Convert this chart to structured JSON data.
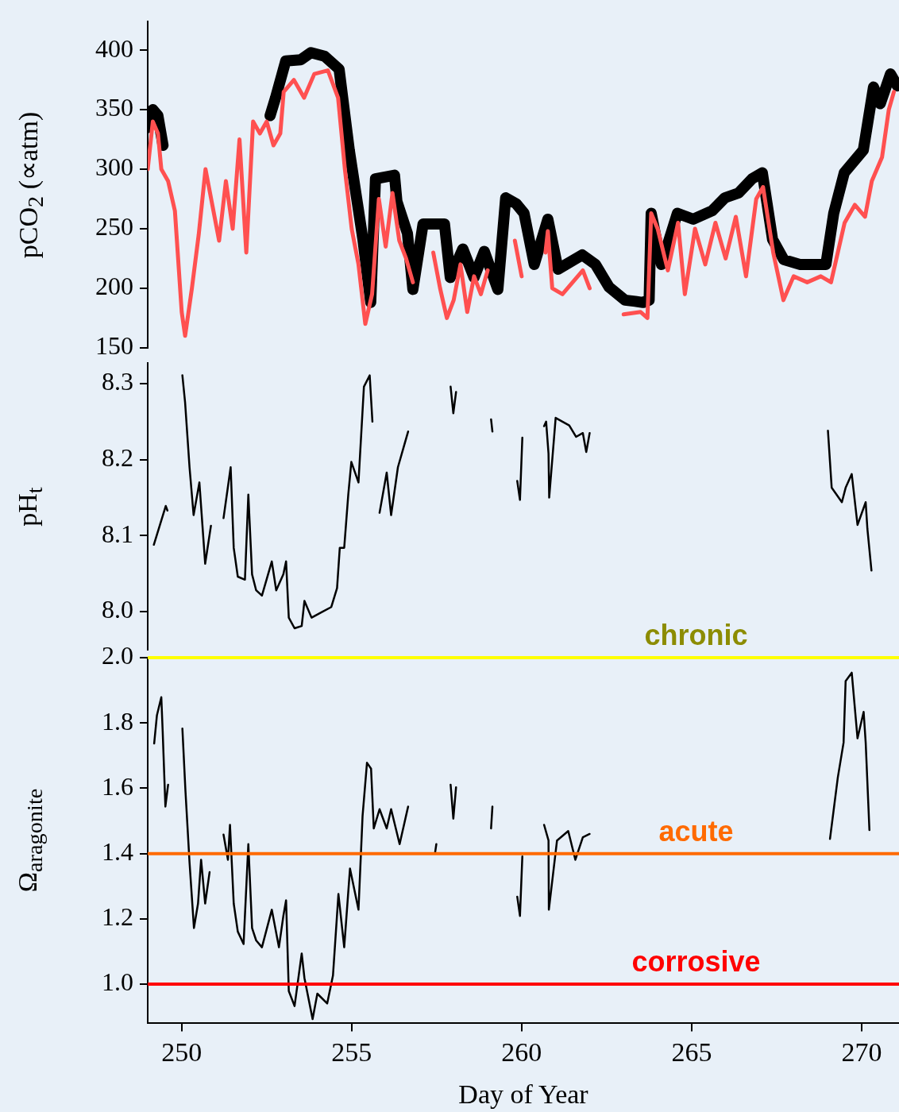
{
  "chart_data": [
    {
      "type": "line",
      "ylabel": "pCO$_{2}$ (∝atm)",
      "xlim": [
        249,
        271.1
      ],
      "xticks": [
        250,
        255,
        260,
        265,
        270
      ],
      "ylim": [
        150,
        424
      ],
      "yticks": [
        150,
        200,
        250,
        300,
        350,
        400
      ],
      "tick_labels": "y",
      "series": [
        {
          "color": "#000000",
          "x": [
            249.0,
            249.15,
            249.3,
            249.45,
            249.6,
            252.6,
            252.76,
            253.06,
            253.5,
            253.8,
            254.2,
            254.63,
            254.93,
            255.16,
            255.33,
            255.56,
            255.7,
            256.26,
            256.33,
            256.64,
            256.8,
            257.1,
            257.73,
            257.9,
            258.27,
            258.6,
            258.9,
            259.3,
            259.53,
            259.84,
            260.07,
            260.37,
            260.77,
            261.07,
            261.78,
            262.17,
            262.57,
            263.04,
            263.34,
            263.57,
            263.75,
            263.81,
            264.11,
            264.58,
            265.05,
            265.6,
            265.98,
            266.38,
            266.78,
            267.08,
            267.38,
            267.71,
            268.18,
            268.55,
            268.95,
            269.18,
            269.49,
            270.05,
            270.35,
            270.55,
            270.85,
            271.05
          ],
          "values": [
            335,
            350,
            345,
            320,
            null,
            345,
            360,
            391,
            392,
            398,
            395,
            384,
            316,
            273,
            241,
            188,
            292,
            295,
            273,
            246,
            199,
            254,
            254,
            209,
            233,
            209,
            231,
            199,
            276,
            271,
            263,
            220,
            258,
            216,
            228,
            220,
            201,
            190,
            189,
            188,
            190,
            263,
            220,
            263,
            258,
            265,
            276,
            280,
            292,
            297,
            241,
            224,
            220,
            220,
            220,
            263,
            297,
            316,
            369,
            355,
            380,
            370
          ]
        },
        {
          "color": "#ff5050",
          "x": [
            249.0,
            249.15,
            249.3,
            249.4,
            249.6,
            249.8,
            250.0,
            250.1,
            250.3,
            250.5,
            250.7,
            250.9,
            251.1,
            251.3,
            251.5,
            251.7,
            251.9,
            252.1,
            252.3,
            252.5,
            252.7,
            252.9,
            253.0,
            253.3,
            253.6,
            253.9,
            254.3,
            254.6,
            254.8,
            255.0,
            255.2,
            255.4,
            255.6,
            255.8,
            256.0,
            256.2,
            256.4,
            256.6,
            256.8,
            257.0,
            257.4,
            257.6,
            257.8,
            258.0,
            258.2,
            258.4,
            258.6,
            258.8,
            259.0,
            259.2,
            259.8,
            260.0,
            260.4,
            260.7,
            260.77,
            260.9,
            261.2,
            261.5,
            261.8,
            262.0,
            262.4,
            263.0,
            263.5,
            263.7,
            263.81,
            264.0,
            264.3,
            264.6,
            264.8,
            265.1,
            265.4,
            265.7,
            266.0,
            266.3,
            266.6,
            266.9,
            267.1,
            267.4,
            267.7,
            268.0,
            268.4,
            268.8,
            269.1,
            269.3,
            269.5,
            269.8,
            270.1,
            270.3,
            270.6,
            270.8,
            270.95
          ],
          "values": [
            300,
            340,
            330,
            300,
            290,
            265,
            180,
            160,
            200,
            245,
            300,
            270,
            240,
            290,
            250,
            325,
            230,
            340,
            330,
            340,
            320,
            330,
            365,
            375,
            360,
            380,
            383,
            360,
            300,
            250,
            220,
            170,
            195,
            275,
            235,
            280,
            240,
            225,
            205,
            null,
            230,
            200,
            175,
            190,
            220,
            180,
            210,
            195,
            215,
            null,
            240,
            210,
            null,
            230,
            248,
            200,
            195,
            205,
            215,
            200,
            null,
            178,
            180,
            175,
            263,
            250,
            215,
            255,
            195,
            250,
            220,
            255,
            225,
            260,
            210,
            275,
            285,
            230,
            190,
            210,
            205,
            210,
            205,
            230,
            255,
            270,
            260,
            290,
            310,
            350,
            365
          ]
        }
      ]
    },
    {
      "type": "line",
      "ylabel": "pH$_{t}$",
      "xlim": [
        249,
        271.1
      ],
      "xticks": [
        250,
        255,
        260,
        265,
        270
      ],
      "ylim": [
        7.95,
        8.327
      ],
      "yticks": [
        {
          "value": 8,
          "label": "8.0"
        },
        {
          "value": 8.1,
          "label": "8.1"
        },
        {
          "value": 8.2,
          "label": "8.2"
        },
        {
          "value": 8.3,
          "label": "8.3"
        }
      ],
      "tick_labels": "y",
      "series": [
        {
          "color": "#000000",
          "x": [
            249.18,
            249.53,
            249.58,
            249.8,
            250.02,
            250.1,
            250.23,
            250.35,
            250.52,
            250.69,
            250.86,
            251.0,
            251.23,
            251.44,
            251.53,
            251.65,
            251.86,
            251.96,
            252.07,
            252.19,
            252.36,
            252.65,
            252.78,
            252.99,
            253.07,
            253.15,
            253.32,
            253.53,
            253.61,
            253.82,
            254.11,
            254.4,
            254.57,
            254.65,
            254.78,
            254.9,
            254.99,
            255.2,
            255.36,
            255.53,
            255.61,
            255.7,
            255.82,
            256.03,
            256.16,
            256.36,
            256.66,
            257.0,
            257.91,
            257.99,
            258.07,
            258.5,
            259.1,
            259.14,
            259.5,
            259.87,
            259.95,
            260.02,
            260.3,
            260.66,
            260.72,
            260.79,
            260.81,
            261.0,
            261.2,
            261.4,
            261.6,
            261.8,
            261.9,
            262.0,
            262.5,
            269.01,
            269.12,
            269.42,
            269.53,
            269.71,
            269.88,
            270.12,
            270.17,
            270.29
          ],
          "values": [
            8.088,
            8.139,
            8.133,
            null,
            8.311,
            8.275,
            8.19,
            8.127,
            8.17,
            8.063,
            8.113,
            null,
            8.123,
            8.19,
            8.084,
            8.046,
            8.042,
            8.154,
            8.049,
            8.028,
            8.021,
            8.066,
            8.028,
            8.049,
            8.066,
            7.992,
            7.978,
            7.981,
            8.014,
            7.992,
            7.999,
            8.006,
            8.031,
            8.084,
            8.084,
            8.154,
            8.197,
            8.17,
            8.296,
            8.311,
            8.25,
            null,
            8.13,
            8.183,
            8.127,
            8.19,
            8.237,
            null,
            8.296,
            8.261,
            8.289,
            null,
            8.253,
            8.237,
            null,
            8.172,
            8.147,
            8.229,
            null,
            8.244,
            8.25,
            8.208,
            8.15,
            8.255,
            8.25,
            8.245,
            8.23,
            8.235,
            8.21,
            8.235,
            null,
            8.238,
            8.163,
            8.144,
            8.163,
            8.181,
            8.114,
            8.144,
            8.109,
            8.054
          ]
        }
      ]
    },
    {
      "type": "line",
      "ylabel": "Ω$_{aragonite}$",
      "xlabel": "Day of Year",
      "xlim": [
        249,
        271.1
      ],
      "xticks": [
        250,
        255,
        260,
        265,
        270
      ],
      "ylim": [
        0.88,
        2
      ],
      "yticks": [
        {
          "value": 1,
          "label": "1.0"
        },
        1.2,
        1.4,
        1.6,
        1.8,
        {
          "value": 2,
          "label": "2.0"
        }
      ],
      "series": [
        {
          "color": "#000000",
          "x": [
            249.19,
            249.27,
            249.4,
            249.44,
            249.52,
            249.6,
            249.8,
            250.02,
            250.11,
            250.23,
            250.36,
            250.48,
            250.57,
            250.69,
            250.82,
            251.0,
            251.23,
            251.36,
            251.42,
            251.53,
            251.65,
            251.82,
            251.96,
            252.07,
            252.19,
            252.36,
            252.65,
            252.86,
            252.99,
            253.07,
            253.15,
            253.32,
            253.53,
            253.61,
            253.85,
            253.99,
            254.28,
            254.45,
            254.61,
            254.78,
            254.95,
            255.2,
            255.32,
            255.45,
            255.57,
            255.65,
            255.82,
            256.03,
            256.16,
            256.41,
            256.66,
            257.0,
            257.45,
            257.49,
            257.6,
            257.91,
            257.99,
            258.07,
            258.5,
            259.1,
            259.14,
            259.5,
            259.87,
            259.95,
            260.02,
            260.3,
            260.66,
            260.79,
            260.8,
            261.04,
            261.37,
            261.58,
            261.8,
            262.0,
            262.5,
            269.07,
            269.3,
            269.47,
            269.53,
            269.71,
            269.88,
            270.06,
            270.12,
            270.23
          ],
          "values": [
            1.737,
            1.823,
            1.879,
            1.775,
            1.544,
            1.611,
            null,
            1.783,
            1.592,
            1.373,
            1.172,
            1.247,
            1.381,
            1.247,
            1.343,
            null,
            1.458,
            1.381,
            1.488,
            1.247,
            1.161,
            1.123,
            1.429,
            1.172,
            1.134,
            1.113,
            1.228,
            1.113,
            1.209,
            1.257,
            0.979,
            0.933,
            1.094,
            1.019,
            0.893,
            0.971,
            0.941,
            1.027,
            1.276,
            1.113,
            1.354,
            1.228,
            1.515,
            1.678,
            1.66,
            1.477,
            1.536,
            1.477,
            1.536,
            1.429,
            1.544,
            null,
            1.4,
            1.429,
            null,
            1.611,
            1.507,
            1.603,
            null,
            1.477,
            1.544,
            null,
            1.268,
            1.209,
            1.391,
            null,
            1.488,
            1.44,
            1.228,
            1.44,
            1.469,
            1.381,
            1.45,
            1.46,
            null,
            1.445,
            1.633,
            1.74,
            1.928,
            1.954,
            1.753,
            1.834,
            1.74,
            1.472
          ]
        }
      ],
      "ref_lines": [
        {
          "axis": "y",
          "value": 2,
          "label": "chronic",
          "color": "#ffff00"
        },
        {
          "axis": "y",
          "value": 1.4,
          "label": "acute",
          "color": "#ff6a00"
        },
        {
          "axis": "y",
          "value": 1,
          "label": "corrosive",
          "color": "#ff0000"
        }
      ]
    }
  ]
}
